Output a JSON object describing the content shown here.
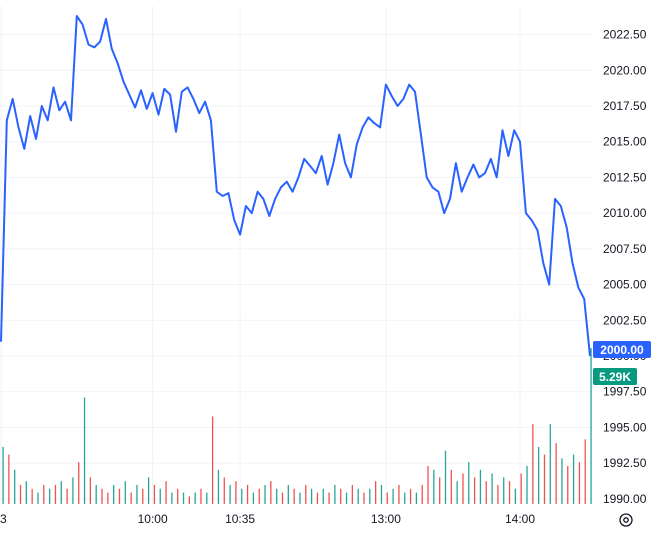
{
  "chart_data": {
    "type": "line",
    "title": "",
    "xlabel": "",
    "ylabel": "",
    "ylim": [
      1989.5,
      2024.5
    ],
    "grid": true,
    "y_ticks": [
      1990.0,
      1992.5,
      1995.0,
      1997.5,
      2000.0,
      2002.5,
      2005.0,
      2007.5,
      2010.0,
      2012.5,
      2015.0,
      2017.5,
      2020.0,
      2022.5
    ],
    "y_tick_labels": [
      "1990.00",
      "1992.50",
      "1995.00",
      "1997.50",
      "2000.00",
      "2002.50",
      "2005.00",
      "2007.50",
      "2010.00",
      "2012.50",
      "2015.00",
      "2017.50",
      "2020.00",
      "2022.50"
    ],
    "x_ticks": [
      "3",
      "10:00",
      "10:35",
      "13:00",
      "14:00"
    ],
    "x_tick_index": [
      0,
      26,
      41,
      66,
      89
    ],
    "last_price_label": "2000.00",
    "volume_label": "5.29K",
    "colors": {
      "line": "#2962ff",
      "price_badge": "#2962ff",
      "volume_badge": "#089981",
      "volume_up": "#26a69a",
      "volume_down": "#ef5350",
      "grid": "#f0f3fa",
      "text": "#131722"
    },
    "series": [
      {
        "values": [
          2001.0,
          2016.5,
          2018.0,
          2016.0,
          2014.5,
          2016.8,
          2015.2,
          2017.5,
          2016.5,
          2018.8,
          2017.2,
          2017.8,
          2016.5,
          2023.8,
          2023.2,
          2021.8,
          2021.6,
          2022.0,
          2023.6,
          2021.5,
          2020.5,
          2019.2,
          2018.3,
          2017.4,
          2018.6,
          2017.3,
          2018.4,
          2016.9,
          2018.7,
          2018.3,
          2015.7,
          2018.5,
          2018.8,
          2018.0,
          2017.0,
          2017.8,
          2016.5,
          2011.5,
          2011.2,
          2011.4,
          2009.5,
          2008.5,
          2010.5,
          2010.0,
          2011.5,
          2011.0,
          2009.8,
          2011.0,
          2011.8,
          2012.2,
          2011.5,
          2012.5,
          2013.8,
          2013.3,
          2012.8,
          2014.0,
          2012.0,
          2013.5,
          2015.5,
          2013.5,
          2012.5,
          2014.8,
          2016.0,
          2016.7,
          2016.3,
          2016.0,
          2019.0,
          2018.2,
          2017.5,
          2018.0,
          2019.0,
          2018.5,
          2015.5,
          2012.5,
          2011.8,
          2011.5,
          2010.0,
          2011.0,
          2013.5,
          2011.5,
          2012.5,
          2013.4,
          2012.5,
          2012.8,
          2013.8,
          2012.5,
          2015.8,
          2014.0,
          2015.8,
          2015.0,
          2010.0,
          2009.5,
          2008.8,
          2006.5,
          2005.0,
          2011.0,
          2010.5,
          2009.0,
          2006.5,
          2004.8,
          2004.0,
          2000.0
        ]
      }
    ],
    "volume": [
      {
        "v": 1.5,
        "up": true
      },
      {
        "v": 1.3,
        "up": false
      },
      {
        "v": 0.9,
        "up": true
      },
      {
        "v": 0.5,
        "up": false
      },
      {
        "v": 0.6,
        "up": true
      },
      {
        "v": 0.4,
        "up": false
      },
      {
        "v": 0.3,
        "up": true
      },
      {
        "v": 0.5,
        "up": false
      },
      {
        "v": 0.4,
        "up": true
      },
      {
        "v": 0.5,
        "up": false
      },
      {
        "v": 0.6,
        "up": true
      },
      {
        "v": 0.4,
        "up": false
      },
      {
        "v": 0.7,
        "up": true
      },
      {
        "v": 1.1,
        "up": false
      },
      {
        "v": 2.8,
        "up": true
      },
      {
        "v": 0.7,
        "up": false
      },
      {
        "v": 0.5,
        "up": true
      },
      {
        "v": 0.4,
        "up": false
      },
      {
        "v": 0.3,
        "up": false
      },
      {
        "v": 0.5,
        "up": true
      },
      {
        "v": 0.4,
        "up": false
      },
      {
        "v": 0.6,
        "up": true
      },
      {
        "v": 0.3,
        "up": false
      },
      {
        "v": 0.5,
        "up": true
      },
      {
        "v": 0.4,
        "up": false
      },
      {
        "v": 0.7,
        "up": true
      },
      {
        "v": 0.5,
        "up": false
      },
      {
        "v": 0.4,
        "up": true
      },
      {
        "v": 0.6,
        "up": false
      },
      {
        "v": 0.3,
        "up": true
      },
      {
        "v": 0.4,
        "up": false
      },
      {
        "v": 0.3,
        "up": true
      },
      {
        "v": 0.2,
        "up": false
      },
      {
        "v": 0.3,
        "up": true
      },
      {
        "v": 0.4,
        "up": false
      },
      {
        "v": 0.3,
        "up": true
      },
      {
        "v": 2.3,
        "up": false
      },
      {
        "v": 0.9,
        "up": true
      },
      {
        "v": 0.7,
        "up": false
      },
      {
        "v": 0.5,
        "up": true
      },
      {
        "v": 0.6,
        "up": false
      },
      {
        "v": 0.4,
        "up": true
      },
      {
        "v": 0.5,
        "up": false
      },
      {
        "v": 0.3,
        "up": true
      },
      {
        "v": 0.4,
        "up": false
      },
      {
        "v": 0.5,
        "up": true
      },
      {
        "v": 0.6,
        "up": false
      },
      {
        "v": 0.4,
        "up": true
      },
      {
        "v": 0.3,
        "up": false
      },
      {
        "v": 0.5,
        "up": true
      },
      {
        "v": 0.4,
        "up": false
      },
      {
        "v": 0.3,
        "up": true
      },
      {
        "v": 0.5,
        "up": false
      },
      {
        "v": 0.4,
        "up": true
      },
      {
        "v": 0.3,
        "up": false
      },
      {
        "v": 0.4,
        "up": true
      },
      {
        "v": 0.3,
        "up": false
      },
      {
        "v": 0.5,
        "up": true
      },
      {
        "v": 0.4,
        "up": false
      },
      {
        "v": 0.3,
        "up": true
      },
      {
        "v": 0.5,
        "up": false
      },
      {
        "v": 0.4,
        "up": true
      },
      {
        "v": 0.3,
        "up": false
      },
      {
        "v": 0.4,
        "up": true
      },
      {
        "v": 0.6,
        "up": false
      },
      {
        "v": 0.5,
        "up": true
      },
      {
        "v": 0.3,
        "up": false
      },
      {
        "v": 0.4,
        "up": true
      },
      {
        "v": 0.5,
        "up": false
      },
      {
        "v": 0.3,
        "up": true
      },
      {
        "v": 0.4,
        "up": false
      },
      {
        "v": 0.3,
        "up": true
      },
      {
        "v": 0.5,
        "up": false
      },
      {
        "v": 1.0,
        "up": false
      },
      {
        "v": 0.9,
        "up": true
      },
      {
        "v": 0.7,
        "up": false
      },
      {
        "v": 1.4,
        "up": true
      },
      {
        "v": 0.9,
        "up": false
      },
      {
        "v": 0.6,
        "up": true
      },
      {
        "v": 0.8,
        "up": false
      },
      {
        "v": 1.1,
        "up": true
      },
      {
        "v": 0.7,
        "up": false
      },
      {
        "v": 0.9,
        "up": true
      },
      {
        "v": 0.6,
        "up": false
      },
      {
        "v": 0.8,
        "up": true
      },
      {
        "v": 0.5,
        "up": false
      },
      {
        "v": 0.7,
        "up": true
      },
      {
        "v": 0.6,
        "up": false
      },
      {
        "v": 0.4,
        "up": true
      },
      {
        "v": 0.8,
        "up": false
      },
      {
        "v": 1.0,
        "up": true
      },
      {
        "v": 2.1,
        "up": false
      },
      {
        "v": 1.5,
        "up": true
      },
      {
        "v": 1.3,
        "up": false
      },
      {
        "v": 2.1,
        "up": true
      },
      {
        "v": 1.6,
        "up": false
      },
      {
        "v": 1.2,
        "up": true
      },
      {
        "v": 1.0,
        "up": false
      },
      {
        "v": 1.3,
        "up": true
      },
      {
        "v": 1.1,
        "up": false
      },
      {
        "v": 1.7,
        "up": false
      },
      {
        "v": 4.1,
        "up": true
      }
    ]
  }
}
